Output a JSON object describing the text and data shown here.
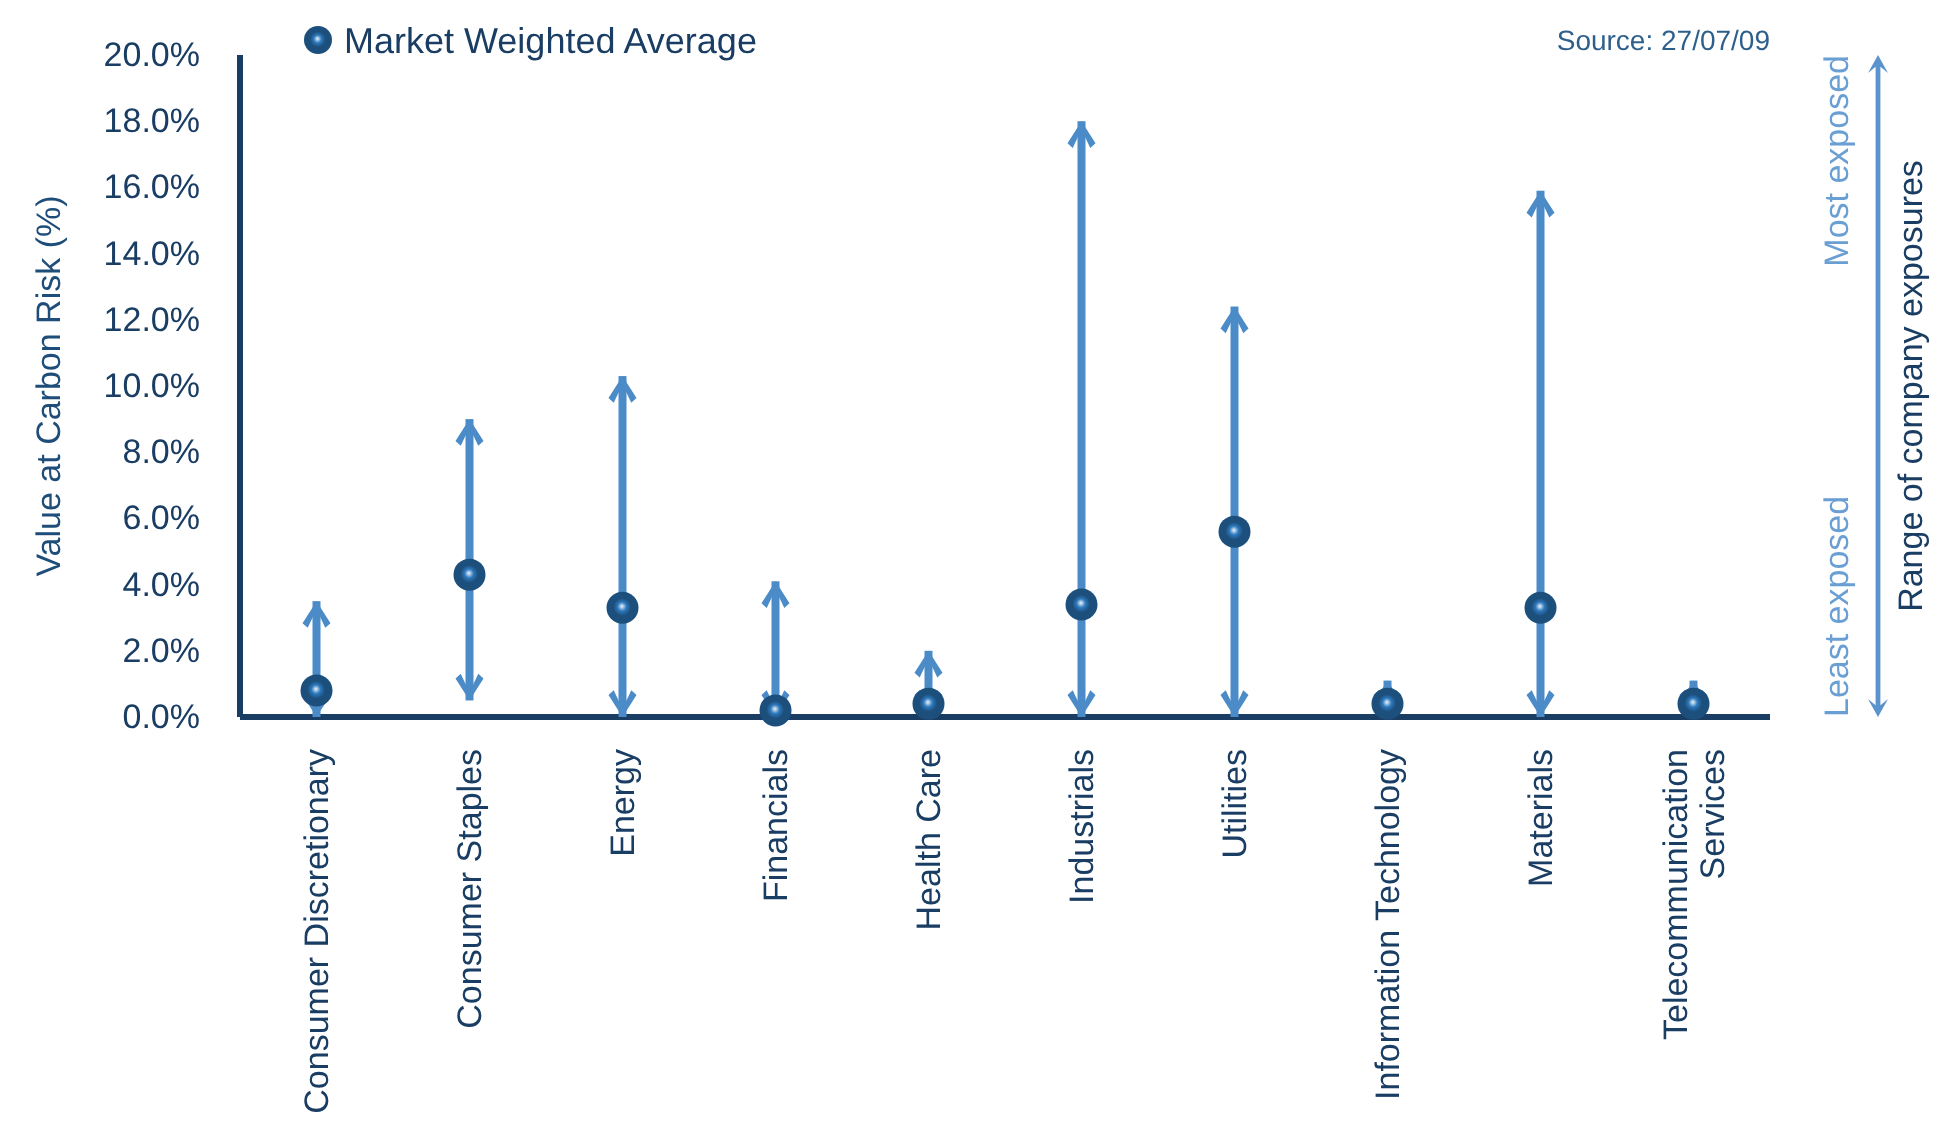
{
  "chart_data": {
    "type": "bar",
    "ylabel": "Value at Carbon Risk (%)",
    "categories": [
      "Consumer Discretionary",
      "Consumer Staples",
      "Energy",
      "Financials",
      "Health Care",
      "Industrials",
      "Utilities",
      "Information Technology",
      "Materials",
      "Telecommunication Services"
    ],
    "series": [
      {
        "color": "#4b8bc7",
        "base": [
          0,
          0.5,
          0,
          0,
          0,
          0,
          0,
          0,
          0,
          0
        ],
        "values": [
          3.5,
          8.5,
          10.3,
          4.1,
          2.0,
          18.0,
          12.4,
          1.1,
          15.9,
          1.1
        ]
      },
      {
        "name": "Market Weighted Average",
        "type": "scatter",
        "color": "#1d4f7c",
        "x": [
          "Consumer Discretionary",
          "Consumer Staples",
          "Energy",
          "Financials",
          "Health Care",
          "Industrials",
          "Utilities",
          "Information Technology",
          "Materials",
          "Telecommunication Services"
        ],
        "values": [
          0.8,
          4.3,
          3.3,
          0.2,
          0.4,
          3.4,
          5.6,
          0.4,
          3.3,
          0.4
        ]
      }
    ],
    "ylim": [
      0,
      20
    ],
    "yticks": [
      {
        "value": 0,
        "label": "0.0%"
      },
      {
        "value": 2,
        "label": "2.0%"
      },
      {
        "value": 4,
        "label": "4.0%"
      },
      {
        "value": 6,
        "label": "6.0%"
      },
      {
        "value": 8,
        "label": "8.0%"
      },
      {
        "value": 10,
        "label": "10.0%"
      },
      {
        "value": 12,
        "label": "12.0%"
      },
      {
        "value": 14,
        "label": "14.0%"
      },
      {
        "value": 16,
        "label": "16.0%"
      },
      {
        "value": 18,
        "label": "18.0%"
      },
      {
        "value": 20,
        "label": "20.0%"
      }
    ],
    "legend": "top left",
    "marker": "circle",
    "annotations": [
      "Source: 27/07/09",
      "Most exposed",
      "Least exposed",
      "Range of company exposures"
    ]
  }
}
